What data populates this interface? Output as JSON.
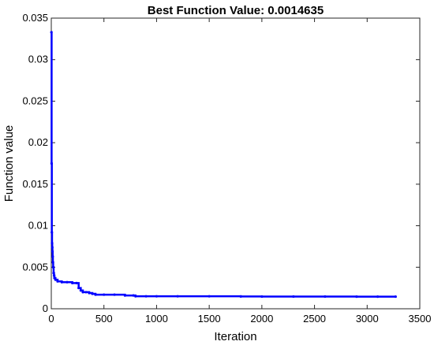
{
  "chart_data": {
    "type": "scatter",
    "title": "Best Function Value: 0.0014635",
    "xlabel": "Iteration",
    "ylabel": "Function value",
    "xlim": [
      0,
      3500
    ],
    "ylim": [
      0,
      0.035
    ],
    "grid": false,
    "xticks": [
      0,
      500,
      1000,
      1500,
      2000,
      2500,
      3000,
      3500
    ],
    "yticks": [
      0,
      0.005,
      0.01,
      0.015,
      0.02,
      0.025,
      0.03,
      0.035
    ],
    "xtick_labels": [
      "0",
      "500",
      "1000",
      "1500",
      "2000",
      "2500",
      "3000",
      "3500"
    ],
    "ytick_labels": [
      "0",
      "0.005",
      "0.01",
      "0.015",
      "0.02",
      "0.025",
      "0.03",
      "0.035"
    ],
    "series_color": "#0000ff",
    "series": [
      {
        "x": [
          1,
          3,
          5,
          7,
          9,
          11,
          13,
          15,
          18,
          22,
          26,
          30,
          40,
          60,
          100,
          150,
          200,
          240,
          260,
          280,
          300,
          330,
          360,
          390,
          420,
          500,
          600,
          700,
          780,
          800,
          900,
          1000,
          1200,
          1500,
          1800,
          2000,
          2300,
          2600,
          2900,
          3100,
          3270
        ],
        "y": [
          0.0333,
          0.0175,
          0.0092,
          0.0079,
          0.0074,
          0.0069,
          0.0063,
          0.0056,
          0.005,
          0.0043,
          0.004,
          0.0037,
          0.0035,
          0.0033,
          0.0032,
          0.0032,
          0.0031,
          0.0031,
          0.0025,
          0.0022,
          0.002,
          0.002,
          0.0019,
          0.0018,
          0.0017,
          0.0017,
          0.0017,
          0.0016,
          0.0016,
          0.0015,
          0.0015,
          0.0015,
          0.0015,
          0.0015,
          0.00148,
          0.00147,
          0.00147,
          0.00147,
          0.00146,
          0.00146,
          0.0014635
        ]
      }
    ]
  }
}
